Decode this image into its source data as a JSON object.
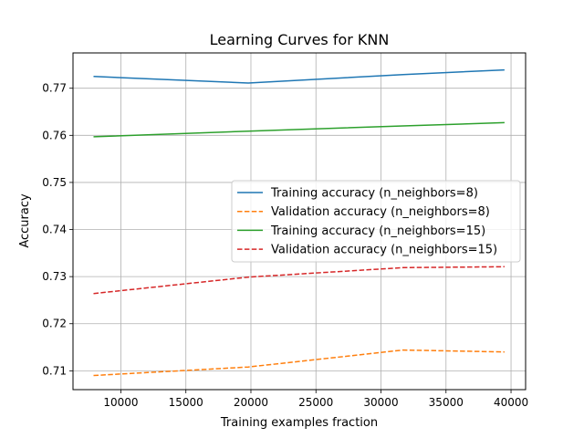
{
  "chart_data": {
    "type": "line",
    "title": "Learning Curves for KNN",
    "xlabel": "Training examples fraction",
    "ylabel": "Accuracy",
    "xlim": [
      6320,
      41120
    ],
    "ylim": [
      0.706,
      0.7775
    ],
    "x_ticks": [
      10000,
      15000,
      20000,
      25000,
      30000,
      35000,
      40000
    ],
    "y_ticks": [
      0.71,
      0.72,
      0.73,
      0.74,
      0.75,
      0.76,
      0.77
    ],
    "x_tick_labels": [
      "10000",
      "15000",
      "20000",
      "25000",
      "30000",
      "35000",
      "40000"
    ],
    "y_tick_labels": [
      "0.71",
      "0.72",
      "0.73",
      "0.74",
      "0.75",
      "0.76",
      "0.77"
    ],
    "grid": true,
    "legend_position": "center-right",
    "series": [
      {
        "name": "Training accuracy (n_neighbors=8)",
        "color": "#1f77b4",
        "style": "solid",
        "x": [
          7900,
          19800,
          31700,
          39500
        ],
        "y": [
          0.7725,
          0.7711,
          0.7729,
          0.7739
        ]
      },
      {
        "name": "Validation accuracy (n_neighbors=8)",
        "color": "#ff7f0e",
        "style": "dashed",
        "x": [
          7900,
          19800,
          31700,
          39500
        ],
        "y": [
          0.709,
          0.7108,
          0.7144,
          0.714
        ]
      },
      {
        "name": "Training accuracy (n_neighbors=15)",
        "color": "#2ca02c",
        "style": "solid",
        "x": [
          7900,
          19800,
          31700,
          39500
        ],
        "y": [
          0.7597,
          0.7609,
          0.762,
          0.7627
        ]
      },
      {
        "name": "Validation accuracy (n_neighbors=15)",
        "color": "#d62728",
        "style": "dashed",
        "x": [
          7900,
          19800,
          31700,
          39500
        ],
        "y": [
          0.7264,
          0.7299,
          0.7319,
          0.7321
        ]
      }
    ]
  }
}
